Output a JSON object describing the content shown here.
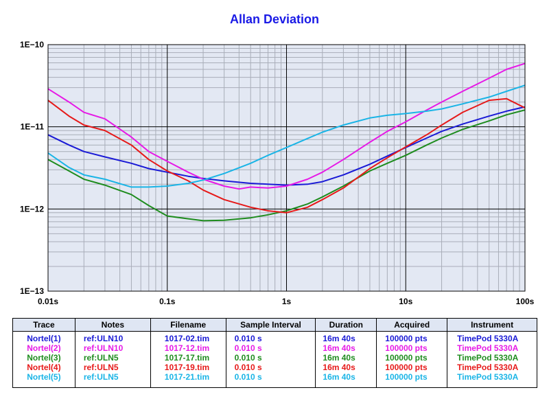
{
  "chart_data": {
    "type": "line",
    "title": "Allan Deviation",
    "xscale": "log",
    "yscale": "log",
    "xlim": [
      0.01,
      100
    ],
    "ylim": [
      1e-13,
      1e-10
    ],
    "x_tick_labels": [
      "0.01s",
      "0.1s",
      "1s",
      "10s",
      "100s"
    ],
    "y_tick_labels": [
      "1E−10",
      "1E−11",
      "1E−12",
      "1E−13"
    ],
    "grid": true,
    "series": [
      {
        "name": "Nortel(1)",
        "color": "#1a1ad6",
        "x": [
          0.01,
          0.015,
          0.02,
          0.03,
          0.05,
          0.07,
          0.1,
          0.15,
          0.2,
          0.3,
          0.5,
          0.7,
          1,
          1.5,
          2,
          3,
          5,
          7,
          10,
          15,
          20,
          30,
          50,
          70,
          100
        ],
        "y": [
          8e-12,
          6e-12,
          5e-12,
          4.3e-12,
          3.6e-12,
          3.1e-12,
          2.8e-12,
          2.5e-12,
          2.35e-12,
          2.2e-12,
          2.05e-12,
          2e-12,
          1.95e-12,
          2e-12,
          2.15e-12,
          2.6e-12,
          3.5e-12,
          4.4e-12,
          5.6e-12,
          7.3e-12,
          8.8e-12,
          1.08e-11,
          1.35e-11,
          1.55e-11,
          1.75e-11
        ]
      },
      {
        "name": "Nortel(2)",
        "color": "#e619e6",
        "x": [
          0.01,
          0.015,
          0.02,
          0.03,
          0.05,
          0.07,
          0.1,
          0.15,
          0.2,
          0.3,
          0.4,
          0.5,
          0.7,
          1,
          1.5,
          2,
          3,
          5,
          7,
          10,
          15,
          20,
          30,
          50,
          70,
          100
        ],
        "y": [
          2.9e-11,
          2e-11,
          1.5e-11,
          1.25e-11,
          7.5e-12,
          5e-12,
          3.8e-12,
          2.8e-12,
          2.3e-12,
          1.9e-12,
          1.75e-12,
          1.85e-12,
          1.8e-12,
          1.9e-12,
          2.3e-12,
          2.8e-12,
          4e-12,
          6.5e-12,
          8.8e-12,
          1.15e-11,
          1.6e-11,
          2e-11,
          2.7e-11,
          3.9e-11,
          5e-11,
          5.9e-11
        ]
      },
      {
        "name": "Nortel(3)",
        "color": "#1e8c1e",
        "x": [
          0.01,
          0.015,
          0.02,
          0.03,
          0.05,
          0.07,
          0.1,
          0.15,
          0.2,
          0.3,
          0.5,
          0.7,
          1,
          1.5,
          2,
          3,
          5,
          7,
          10,
          15,
          20,
          30,
          50,
          70,
          100
        ],
        "y": [
          4e-12,
          2.9e-12,
          2.3e-12,
          1.95e-12,
          1.5e-12,
          1.1e-12,
          8.2e-13,
          7.6e-13,
          7.2e-13,
          7.3e-13,
          7.8e-13,
          8.5e-13,
          9.5e-13,
          1.15e-12,
          1.4e-12,
          1.9e-12,
          2.9e-12,
          3.6e-12,
          4.5e-12,
          6e-12,
          7.3e-12,
          9.3e-12,
          1.18e-11,
          1.4e-11,
          1.6e-11
        ]
      },
      {
        "name": "Nortel(4)",
        "color": "#e61919",
        "x": [
          0.01,
          0.015,
          0.02,
          0.03,
          0.05,
          0.07,
          0.1,
          0.15,
          0.2,
          0.3,
          0.5,
          0.7,
          1,
          1.5,
          2,
          3,
          5,
          7,
          10,
          15,
          20,
          30,
          50,
          70,
          100
        ],
        "y": [
          2.1e-11,
          1.35e-11,
          1.05e-11,
          9e-12,
          6e-12,
          4e-12,
          2.9e-12,
          2.2e-12,
          1.7e-12,
          1.3e-12,
          1.05e-12,
          9.5e-13,
          9e-13,
          1.05e-12,
          1.3e-12,
          1.8e-12,
          3.1e-12,
          4.2e-12,
          5.7e-12,
          8e-12,
          1.05e-11,
          1.5e-11,
          2.1e-11,
          2.2e-11,
          1.7e-11
        ]
      },
      {
        "name": "Nortel(5)",
        "color": "#19b4e6",
        "x": [
          0.01,
          0.015,
          0.02,
          0.03,
          0.05,
          0.07,
          0.1,
          0.15,
          0.2,
          0.3,
          0.5,
          0.7,
          1,
          1.5,
          2,
          3,
          5,
          7,
          10,
          15,
          20,
          30,
          50,
          70,
          100
        ],
        "y": [
          4.8e-12,
          3.2e-12,
          2.6e-12,
          2.3e-12,
          1.85e-12,
          1.85e-12,
          1.9e-12,
          2.05e-12,
          2.25e-12,
          2.7e-12,
          3.6e-12,
          4.5e-12,
          5.6e-12,
          7.2e-12,
          8.6e-12,
          1.05e-11,
          1.28e-11,
          1.38e-11,
          1.45e-11,
          1.55e-11,
          1.65e-11,
          1.9e-11,
          2.3e-11,
          2.7e-11,
          3.2e-11
        ]
      }
    ]
  },
  "colors": {
    "plot_background": "#e3e8f3",
    "grid_major": "#000000",
    "grid_minor": "#a8adb8",
    "title": "#1a1ae6"
  },
  "legend_table": {
    "headers": [
      "Trace",
      "Notes",
      "Filename",
      "Sample Interval",
      "Duration",
      "Acquired",
      "Instrument"
    ],
    "rows": [
      {
        "color": "#1a1ad6",
        "cells": [
          "Nortel(1)",
          "ref:ULN10",
          "1017-02.tim",
          "0.010 s",
          "16m 40s",
          "100000 pts",
          "TimePod 5330A"
        ]
      },
      {
        "color": "#e619e6",
        "cells": [
          "Nortel(2)",
          "ref:ULN10",
          "1017-12.tim",
          "0.010 s",
          "16m 40s",
          "100000 pts",
          "TimePod 5330A"
        ]
      },
      {
        "color": "#1e8c1e",
        "cells": [
          "Nortel(3)",
          "ref:ULN5",
          "1017-17.tim",
          "0.010 s",
          "16m 40s",
          "100000 pts",
          "TimePod 5330A"
        ]
      },
      {
        "color": "#e61919",
        "cells": [
          "Nortel(4)",
          "ref:ULN5",
          "1017-19.tim",
          "0.010 s",
          "16m 40s",
          "100000 pts",
          "TimePod 5330A"
        ]
      },
      {
        "color": "#19b4e6",
        "cells": [
          "Nortel(5)",
          "ref:ULN5",
          "1017-21.tim",
          "0.010 s",
          "16m 40s",
          "100000 pts",
          "TimePod 5330A"
        ]
      }
    ]
  }
}
